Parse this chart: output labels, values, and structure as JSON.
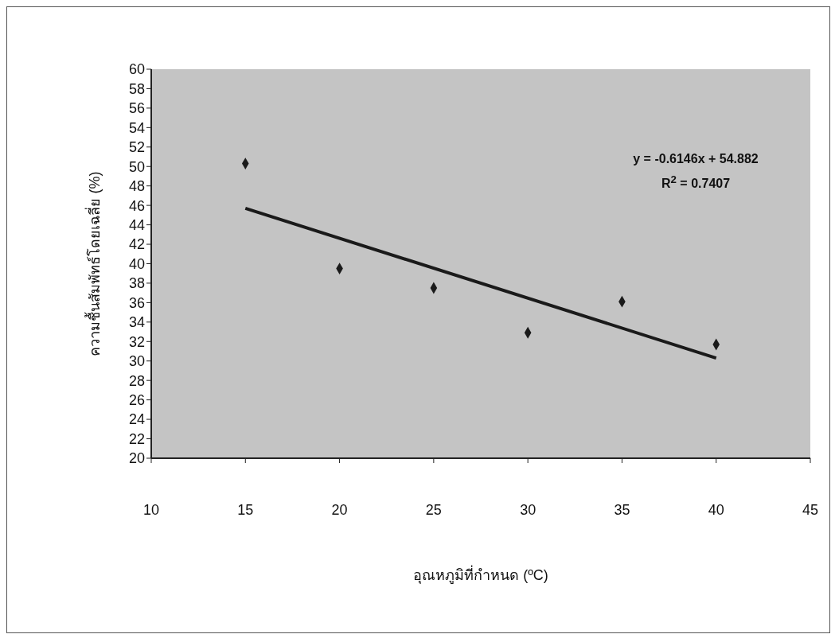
{
  "chart_data": {
    "type": "scatter",
    "xlabel": "อุณหภูมิที่กำหนด (ºC)",
    "ylabel": "ความชื้นสัมพัทธ์โดยเฉลี่ย (%)",
    "xlim": [
      10,
      45
    ],
    "xticks": [
      10,
      15,
      20,
      25,
      30,
      35,
      40,
      45
    ],
    "ylim": [
      20,
      60
    ],
    "yticks": [
      20,
      22,
      24,
      26,
      28,
      30,
      32,
      34,
      36,
      38,
      40,
      42,
      44,
      46,
      48,
      50,
      52,
      54,
      56,
      58,
      60
    ],
    "grid": false,
    "marker": "diamond",
    "series": [
      {
        "color": "#1a1a1a",
        "x": [
          15,
          20,
          25,
          30,
          35,
          40
        ],
        "values": [
          50.3,
          39.5,
          37.5,
          32.9,
          36.1,
          31.7
        ]
      },
      {
        "type": "line",
        "color": "#1a1a1a",
        "x": [
          15,
          40
        ],
        "values": [
          45.7,
          30.3
        ],
        "marker": "none",
        "line_style": "solid"
      }
    ],
    "annotations": [
      "y = -0.6146x + 54.882",
      "R$^{2}$ = 0.7407"
    ]
  }
}
